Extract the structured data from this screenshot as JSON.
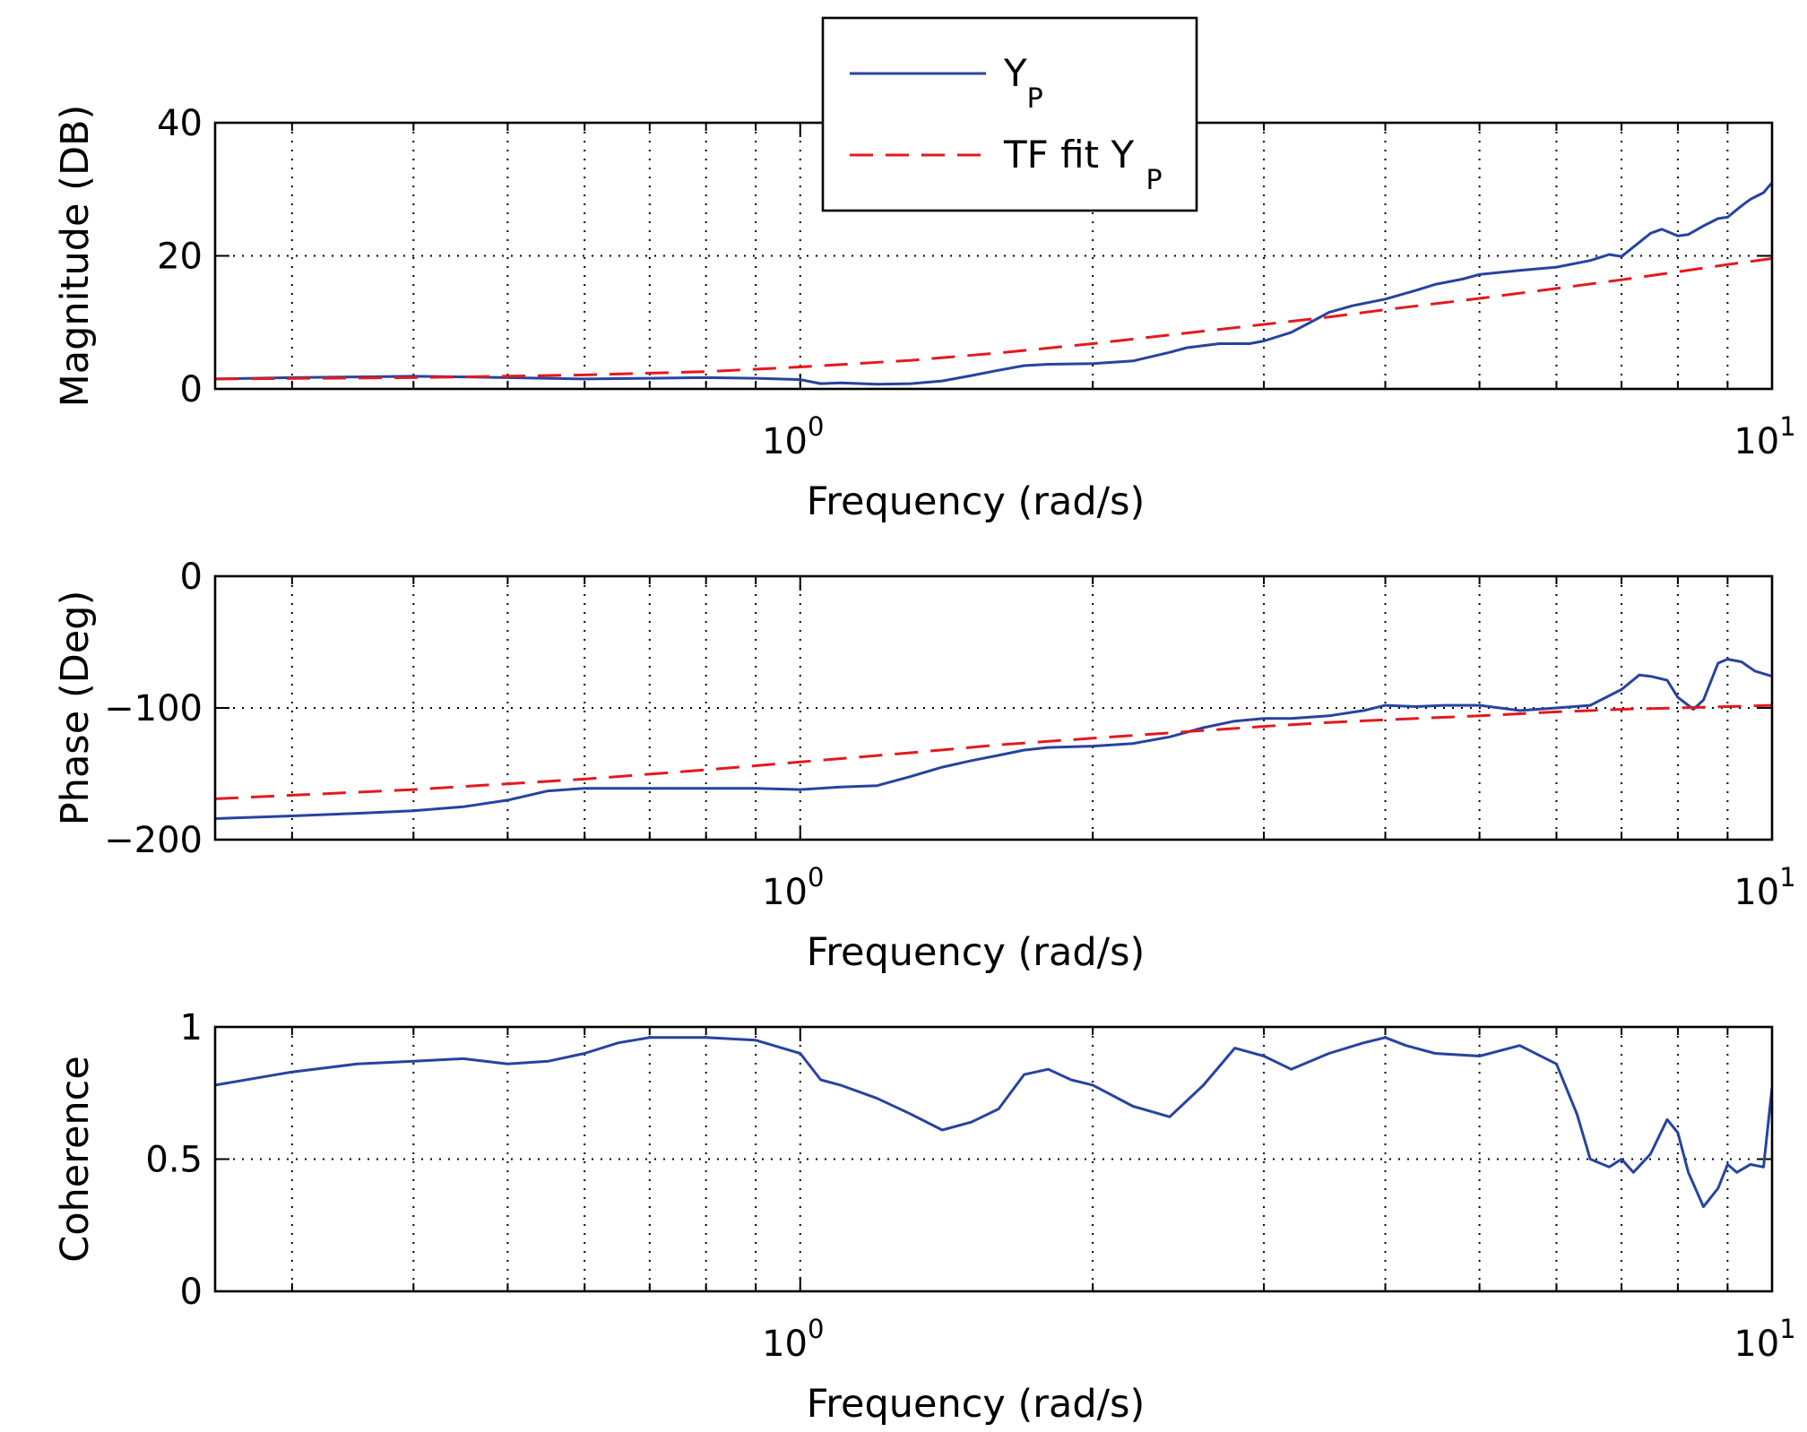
{
  "chart_data": [
    {
      "type": "line",
      "name": "magnitude",
      "xscale": "log",
      "xlim": [
        0.25,
        10
      ],
      "ylim": [
        0,
        40
      ],
      "yticks": [
        0,
        20,
        40
      ],
      "ylabel": "Magnitude (DB)",
      "xlabel": "Frequency (rad/s)",
      "xtick_labels": [
        {
          "base": "10",
          "exp": "0"
        },
        {
          "base": "10",
          "exp": "1"
        }
      ],
      "grid": true,
      "legend": {
        "position": "top-center",
        "entries": [
          {
            "text": "Y",
            "sub": "P",
            "style": "solid",
            "color": "#2743a0"
          },
          {
            "text": "TF fit Y ",
            "sub": "P",
            "style": "dashed",
            "color": "#e4191e"
          }
        ]
      },
      "series": [
        {
          "name": "Y_P",
          "style": "solid",
          "color": "#2743a0",
          "x": [
            0.25,
            0.3,
            0.35,
            0.4,
            0.45,
            0.5,
            0.6,
            0.7,
            0.8,
            0.9,
            1.0,
            1.05,
            1.1,
            1.2,
            1.3,
            1.4,
            1.5,
            1.6,
            1.7,
            1.8,
            2.0,
            2.2,
            2.4,
            2.5,
            2.7,
            2.9,
            3.0,
            3.2,
            3.4,
            3.5,
            3.7,
            4.0,
            4.3,
            4.5,
            4.8,
            5.0,
            5.5,
            6.0,
            6.5,
            6.8,
            7.0,
            7.3,
            7.5,
            7.7,
            8.0,
            8.2,
            8.5,
            8.8,
            9.0,
            9.3,
            9.5,
            9.8,
            10.0
          ],
          "y": [
            1.5,
            1.7,
            1.8,
            1.9,
            1.8,
            1.7,
            1.5,
            1.6,
            1.7,
            1.6,
            1.4,
            0.8,
            0.9,
            0.7,
            0.8,
            1.2,
            2.0,
            2.8,
            3.5,
            3.7,
            3.8,
            4.2,
            5.5,
            6.2,
            6.8,
            6.8,
            7.2,
            8.5,
            10.5,
            11.5,
            12.5,
            13.5,
            14.8,
            15.7,
            16.5,
            17.2,
            17.8,
            18.3,
            19.3,
            20.2,
            19.9,
            22.0,
            23.4,
            24.0,
            23.0,
            23.2,
            24.5,
            25.6,
            25.8,
            27.5,
            28.5,
            29.5,
            31.0
          ]
        },
        {
          "name": "TF fit Y_P",
          "style": "dashed",
          "color": "#e4191e",
          "x": [
            0.25,
            0.4,
            0.6,
            0.8,
            1.0,
            1.3,
            1.6,
            2.0,
            2.5,
            3.0,
            3.5,
            4.0,
            5.0,
            6.0,
            7.0,
            8.0,
            9.0,
            10.0
          ],
          "y": [
            1.5,
            1.7,
            2.1,
            2.6,
            3.3,
            4.3,
            5.4,
            6.8,
            8.4,
            9.7,
            10.8,
            11.9,
            13.6,
            15.1,
            16.4,
            17.6,
            18.7,
            19.6
          ]
        }
      ]
    },
    {
      "type": "line",
      "name": "phase",
      "xscale": "log",
      "xlim": [
        0.25,
        10
      ],
      "ylim": [
        -200,
        0
      ],
      "yticks": [
        -200,
        -100,
        0
      ],
      "ytick_labels": [
        "−200",
        "−100",
        "0"
      ],
      "ylabel": "Phase (Deg)",
      "xlabel": "Frequency (rad/s)",
      "xtick_labels": [
        {
          "base": "10",
          "exp": "0"
        },
        {
          "base": "10",
          "exp": "1"
        }
      ],
      "grid": true,
      "series": [
        {
          "name": "Y_P",
          "style": "solid",
          "color": "#2743a0",
          "x": [
            0.25,
            0.3,
            0.35,
            0.4,
            0.45,
            0.5,
            0.55,
            0.6,
            0.7,
            0.8,
            0.9,
            1.0,
            1.1,
            1.2,
            1.3,
            1.4,
            1.5,
            1.6,
            1.7,
            1.8,
            2.0,
            2.2,
            2.4,
            2.6,
            2.8,
            3.0,
            3.2,
            3.5,
            3.8,
            4.0,
            4.3,
            4.6,
            5.0,
            5.5,
            6.0,
            6.5,
            7.0,
            7.3,
            7.5,
            7.8,
            8.0,
            8.3,
            8.5,
            8.8,
            9.0,
            9.3,
            9.6,
            10.0
          ],
          "y": [
            -184,
            -182,
            -180,
            -178,
            -175,
            -170,
            -163,
            -161,
            -161,
            -161,
            -161,
            -162,
            -160,
            -159,
            -152,
            -145,
            -140,
            -136,
            -132,
            -130,
            -129,
            -127,
            -122,
            -115,
            -110,
            -108,
            -108,
            -106,
            -102,
            -98,
            -99,
            -98,
            -98,
            -102,
            -100,
            -98,
            -86,
            -75,
            -76,
            -79,
            -92,
            -101,
            -94,
            -66,
            -63,
            -65,
            -72,
            -76
          ]
        },
        {
          "name": "TF fit Y_P",
          "style": "dashed",
          "color": "#e4191e",
          "x": [
            0.25,
            0.4,
            0.6,
            0.8,
            1.0,
            1.3,
            1.6,
            2.0,
            2.5,
            3.0,
            3.5,
            4.0,
            5.0,
            6.0,
            7.0,
            8.0,
            9.0,
            10.0
          ],
          "y": [
            -169,
            -162,
            -154,
            -147,
            -141,
            -134,
            -128,
            -123,
            -118,
            -114,
            -111,
            -109,
            -106,
            -103,
            -101,
            -100,
            -99,
            -98
          ]
        }
      ]
    },
    {
      "type": "line",
      "name": "coherence",
      "xscale": "log",
      "xlim": [
        0.25,
        10
      ],
      "ylim": [
        0,
        1
      ],
      "yticks": [
        0,
        0.5,
        1
      ],
      "ytick_labels": [
        "0",
        "0.5",
        "1"
      ],
      "ylabel": "Coherence",
      "xlabel": "Frequency (rad/s)",
      "xtick_labels": [
        {
          "base": "10",
          "exp": "0"
        },
        {
          "base": "10",
          "exp": "1"
        }
      ],
      "grid": true,
      "series": [
        {
          "name": "Y_P",
          "style": "solid",
          "color": "#2743a0",
          "x": [
            0.25,
            0.3,
            0.35,
            0.4,
            0.45,
            0.5,
            0.55,
            0.6,
            0.65,
            0.7,
            0.8,
            0.9,
            1.0,
            1.05,
            1.1,
            1.2,
            1.3,
            1.4,
            1.5,
            1.6,
            1.7,
            1.8,
            1.9,
            2.0,
            2.2,
            2.4,
            2.6,
            2.8,
            3.0,
            3.2,
            3.5,
            3.8,
            4.0,
            4.2,
            4.5,
            5.0,
            5.5,
            6.0,
            6.3,
            6.5,
            6.8,
            7.0,
            7.2,
            7.5,
            7.8,
            8.0,
            8.2,
            8.5,
            8.8,
            9.0,
            9.2,
            9.5,
            9.8,
            10.0
          ],
          "y": [
            0.78,
            0.83,
            0.86,
            0.87,
            0.88,
            0.86,
            0.87,
            0.9,
            0.94,
            0.96,
            0.96,
            0.95,
            0.9,
            0.8,
            0.78,
            0.73,
            0.67,
            0.61,
            0.64,
            0.69,
            0.82,
            0.84,
            0.8,
            0.78,
            0.7,
            0.66,
            0.78,
            0.92,
            0.89,
            0.84,
            0.9,
            0.94,
            0.96,
            0.93,
            0.9,
            0.89,
            0.93,
            0.86,
            0.67,
            0.5,
            0.47,
            0.5,
            0.45,
            0.52,
            0.65,
            0.6,
            0.45,
            0.32,
            0.39,
            0.48,
            0.45,
            0.48,
            0.47,
            0.77
          ]
        }
      ]
    }
  ]
}
